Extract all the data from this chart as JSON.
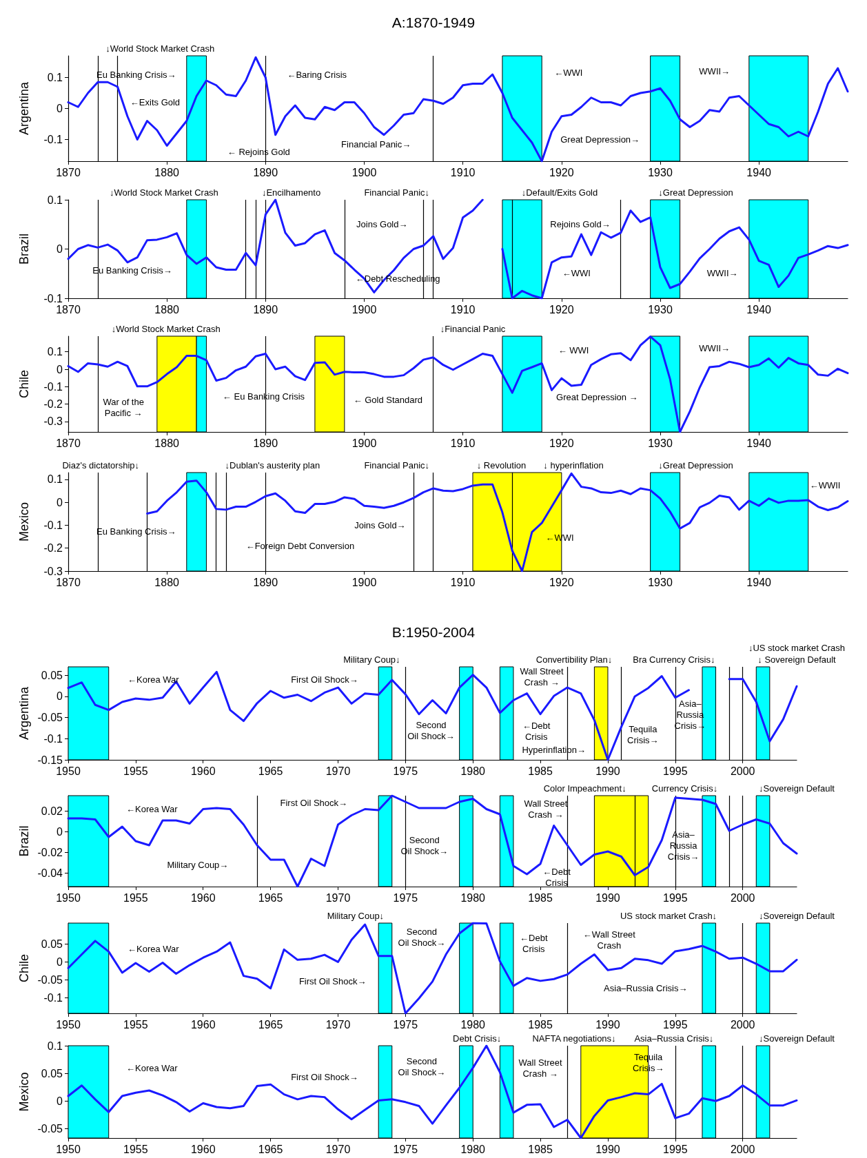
{
  "chart_data": [
    {
      "type": "line",
      "title": "A:1870-1949",
      "ylabel": "Argentina",
      "color": "#1a1aff",
      "marker": "none",
      "x": [
        1870,
        1871,
        1872,
        1873,
        1874,
        1875,
        1876,
        1877,
        1878,
        1879,
        1880,
        1881,
        1882,
        1883,
        1884,
        1885,
        1886,
        1887,
        1888,
        1889,
        1890,
        1891,
        1892,
        1893,
        1894,
        1895,
        1896,
        1897,
        1898,
        1899,
        1900,
        1901,
        1902,
        1903,
        1904,
        1905,
        1906,
        1907,
        1908,
        1909,
        1910,
        1911,
        1912,
        1913,
        1914,
        1915,
        1916,
        1917,
        1918,
        1919,
        1920,
        1921,
        1922,
        1923,
        1924,
        1925,
        1926,
        1927,
        1928,
        1929,
        1930,
        1931,
        1932,
        1933,
        1934,
        1935,
        1936,
        1937,
        1938,
        1939,
        1940,
        1941,
        1942,
        1943,
        1944,
        1945,
        1946,
        1947,
        1948,
        1949
      ],
      "values": [
        0.02,
        0.005,
        0.05,
        0.085,
        0.085,
        0.07,
        -0.025,
        -0.1,
        -0.04,
        -0.07,
        -0.12,
        -0.08,
        -0.04,
        0.04,
        0.09,
        0.075,
        0.045,
        0.04,
        0.09,
        0.165,
        0.1,
        -0.085,
        -0.025,
        0.01,
        -0.03,
        -0.035,
        0.005,
        -0.005,
        0.02,
        0.02,
        -0.015,
        -0.06,
        -0.085,
        -0.055,
        -0.02,
        -0.015,
        0.03,
        0.025,
        0.015,
        0.035,
        0.075,
        0.08,
        0.08,
        0.11,
        0.05,
        -0.03,
        -0.07,
        -0.11,
        -0.17,
        -0.075,
        -0.025,
        -0.02,
        0.005,
        0.035,
        0.02,
        0.02,
        0.01,
        0.04,
        0.05,
        0.055,
        0.065,
        0.025,
        -0.035,
        -0.06,
        -0.04,
        -0.005,
        -0.01,
        0.035,
        0.04,
        0.01,
        -0.02,
        -0.05,
        -0.06,
        -0.09,
        -0.075,
        -0.09,
        -0.01,
        0.08,
        0.13,
        0.055
      ],
      "xlim": [
        1870,
        1949
      ],
      "xticks": [
        1870,
        1880,
        1890,
        1900,
        1910,
        1920,
        1930,
        1940
      ],
      "ylim": [
        -0.17,
        0.17
      ],
      "yticks": [
        -0.1,
        0,
        0.1
      ],
      "ref_lines": [
        {
          "axis": "x",
          "value": 1873
        },
        {
          "axis": "x",
          "value": 1875
        },
        {
          "axis": "x",
          "value": 1890
        },
        {
          "axis": "x",
          "value": 1907
        }
      ],
      "bands": [
        {
          "axis": "x",
          "from": 1882,
          "to": 1884,
          "color": "#00ffff"
        },
        {
          "axis": "x",
          "from": 1914,
          "to": 1918,
          "color": "#00ffff"
        },
        {
          "axis": "x",
          "from": 1929,
          "to": 1932,
          "color": "#00ffff"
        },
        {
          "axis": "x",
          "from": 1939,
          "to": 1945,
          "color": "#00ffff"
        }
      ],
      "annotations": [
        "↓World Stock Market Crash",
        "Eu Banking Crisis→",
        "←Exits Gold",
        "← Rejoins Gold",
        "←Baring Crisis",
        "Financial Panic→",
        "←WWI",
        "Great Depression→",
        "WWII→"
      ]
    },
    {
      "type": "line",
      "ylabel": "Brazil",
      "color": "#1a1aff",
      "marker": "none",
      "x": [
        1870,
        1871,
        1872,
        1873,
        1874,
        1875,
        1876,
        1877,
        1878,
        1879,
        1880,
        1881,
        1882,
        1883,
        1884,
        1885,
        1886,
        1887,
        1888,
        1889,
        1890,
        1891,
        1892,
        1893,
        1894,
        1895,
        1896,
        1897,
        1898,
        1899,
        1900,
        1901,
        1902,
        1903,
        1904,
        1905,
        1906,
        1907,
        1908,
        1909,
        1910,
        1911,
        1912,
        1913,
        1914,
        1915,
        1916,
        1917,
        1918,
        1919,
        1920,
        1921,
        1922,
        1923,
        1924,
        1925,
        1926,
        1927,
        1928,
        1929,
        1930,
        1931,
        1932,
        1933,
        1934,
        1935,
        1936,
        1937,
        1938,
        1939,
        1940,
        1941,
        1942,
        1943,
        1944,
        1945,
        1946,
        1947,
        1948,
        1949
      ],
      "values": [
        -0.02,
        0,
        0.008,
        0.003,
        0.009,
        -0.003,
        -0.027,
        -0.017,
        0.018,
        0.019,
        0.024,
        0.032,
        -0.012,
        -0.03,
        -0.017,
        -0.037,
        -0.042,
        -0.042,
        -0.008,
        -0.033,
        0.07,
        0.1,
        0.033,
        0.007,
        0.012,
        0.03,
        0.038,
        -0.008,
        -0.023,
        -0.042,
        -0.06,
        -0.088,
        -0.063,
        -0.043,
        -0.018,
        0,
        0.007,
        0.026,
        -0.02,
        0.002,
        0.064,
        0.078,
        0.1,
        null,
        0,
        -0.1,
        -0.085,
        -0.094,
        -0.1,
        -0.027,
        -0.017,
        -0.015,
        0.03,
        -0.012,
        0.034,
        0.023,
        0.033,
        0.078,
        0.055,
        0.064,
        -0.037,
        -0.079,
        -0.071,
        -0.046,
        -0.019,
        0,
        0.021,
        0.036,
        0.044,
        0.019,
        -0.024,
        -0.032,
        -0.077,
        -0.054,
        -0.018,
        -0.011,
        -0.003,
        0.006,
        0.002,
        0.008
      ],
      "xlim": [
        1870,
        1949
      ],
      "xticks": [
        1870,
        1880,
        1890,
        1900,
        1910,
        1920,
        1930,
        1940
      ],
      "ylim": [
        -0.1,
        0.1
      ],
      "yticks": [
        -0.1,
        0,
        0.1
      ],
      "ref_lines": [
        {
          "axis": "x",
          "value": 1873
        },
        {
          "axis": "x",
          "value": 1888
        },
        {
          "axis": "x",
          "value": 1889
        },
        {
          "axis": "x",
          "value": 1890
        },
        {
          "axis": "x",
          "value": 1898
        },
        {
          "axis": "x",
          "value": 1906
        },
        {
          "axis": "x",
          "value": 1907
        },
        {
          "axis": "x",
          "value": 1915
        },
        {
          "axis": "x",
          "value": 1926
        }
      ],
      "bands": [
        {
          "axis": "x",
          "from": 1882,
          "to": 1884,
          "color": "#00ffff"
        },
        {
          "axis": "x",
          "from": 1914,
          "to": 1918,
          "color": "#00ffff"
        },
        {
          "axis": "x",
          "from": 1929,
          "to": 1932,
          "color": "#00ffff"
        },
        {
          "axis": "x",
          "from": 1939,
          "to": 1945,
          "color": "#00ffff"
        }
      ],
      "annotations": [
        "↓World Stock Market Crash",
        "↓Encilhamento",
        "Financial Panic↓",
        "↓Default/Exits Gold",
        "↓Great Depression",
        "Eu Banking Crisis→",
        "Joins Gold→",
        "←Debt Rescheduling",
        "Rejoins Gold→",
        "←WWI",
        "WWII→"
      ]
    },
    {
      "type": "line",
      "ylabel": "Chile",
      "color": "#1a1aff",
      "marker": "none",
      "x": [
        1870,
        1871,
        1872,
        1873,
        1874,
        1875,
        1876,
        1877,
        1878,
        1879,
        1880,
        1881,
        1882,
        1883,
        1884,
        1885,
        1886,
        1887,
        1888,
        1889,
        1890,
        1891,
        1892,
        1893,
        1894,
        1895,
        1896,
        1897,
        1898,
        1899,
        1900,
        1901,
        1902,
        1903,
        1904,
        1905,
        1906,
        1907,
        1908,
        1909,
        1910,
        1911,
        1912,
        1913,
        1914,
        1915,
        1916,
        1917,
        1918,
        1919,
        1920,
        1921,
        1922,
        1923,
        1924,
        1925,
        1926,
        1927,
        1928,
        1929,
        1930,
        1931,
        1932,
        1933,
        1934,
        1935,
        1936,
        1937,
        1938,
        1939,
        1940,
        1941,
        1942,
        1943,
        1944,
        1945,
        1946,
        1947,
        1948,
        1949
      ],
      "values": [
        0.018,
        -0.015,
        0.034,
        0.028,
        0.015,
        0.043,
        0.018,
        -0.098,
        -0.098,
        -0.074,
        -0.028,
        0.012,
        0.077,
        0.077,
        0.052,
        -0.065,
        -0.05,
        -0.006,
        0.015,
        0.074,
        0.089,
        0,
        0.015,
        -0.04,
        -0.062,
        0.037,
        0.04,
        -0.031,
        -0.015,
        -0.018,
        -0.018,
        -0.028,
        -0.043,
        -0.043,
        -0.034,
        0.006,
        0.055,
        0.068,
        0.025,
        -0.003,
        0.028,
        0.058,
        0.089,
        0.077,
        -0.028,
        -0.135,
        -0.009,
        0.012,
        0.034,
        -0.12,
        -0.052,
        -0.095,
        -0.089,
        0.025,
        0.058,
        0.086,
        0.092,
        0.052,
        0.138,
        0.188,
        0.138,
        -0.058,
        -0.36,
        -0.243,
        -0.105,
        0.012,
        0.018,
        0.043,
        0.031,
        0.012,
        0.025,
        0.062,
        0.009,
        0.065,
        0.034,
        0.025,
        -0.031,
        -0.037,
        0.003,
        -0.022
      ],
      "xlim": [
        1870,
        1949
      ],
      "xticks": [
        1870,
        1880,
        1890,
        1900,
        1910,
        1920,
        1930,
        1940
      ],
      "ylim": [
        -0.36,
        0.19
      ],
      "yticks": [
        -0.3,
        -0.2,
        -0.1,
        0,
        0.1
      ],
      "ref_lines": [
        {
          "axis": "x",
          "value": 1873
        },
        {
          "axis": "x",
          "value": 1890
        },
        {
          "axis": "x",
          "value": 1907
        }
      ],
      "bands": [
        {
          "axis": "x",
          "from": 1879,
          "to": 1883,
          "color": "#ffff00"
        },
        {
          "axis": "x",
          "from": 1883,
          "to": 1884,
          "color": "#00ffff"
        },
        {
          "axis": "x",
          "from": 1895,
          "to": 1898,
          "color": "#ffff00"
        },
        {
          "axis": "x",
          "from": 1914,
          "to": 1918,
          "color": "#00ffff"
        },
        {
          "axis": "x",
          "from": 1929,
          "to": 1932,
          "color": "#00ffff"
        },
        {
          "axis": "x",
          "from": 1939,
          "to": 1945,
          "color": "#00ffff"
        }
      ],
      "annotations": [
        "↓World Stock Market Crash",
        "↓Financial Panic",
        "War of the\nPacific →",
        "← Eu Banking Crisis",
        "← Gold Standard",
        "← WWI",
        "Great Depression →",
        "WWII→"
      ]
    },
    {
      "type": "line",
      "ylabel": "Mexico",
      "color": "#1a1aff",
      "marker": "none",
      "x": [
        1878,
        1879,
        1880,
        1881,
        1882,
        1883,
        1884,
        1885,
        1886,
        1887,
        1888,
        1889,
        1890,
        1891,
        1892,
        1893,
        1894,
        1895,
        1896,
        1897,
        1898,
        1899,
        1900,
        1901,
        1902,
        1903,
        1904,
        1905,
        1906,
        1907,
        1908,
        1909,
        1910,
        1911,
        1912,
        1913,
        1914,
        1915,
        1916,
        1917,
        1918,
        1919,
        1920,
        1921,
        1922,
        1923,
        1924,
        1925,
        1926,
        1927,
        1928,
        1929,
        1930,
        1931,
        1932,
        1933,
        1934,
        1935,
        1936,
        1937,
        1938,
        1939,
        1940,
        1941,
        1942,
        1943,
        1944,
        1945,
        1946,
        1947,
        1948,
        1949
      ],
      "values": [
        -0.049,
        -0.039,
        0.007,
        0.044,
        0.09,
        0.095,
        0.044,
        -0.029,
        -0.032,
        -0.019,
        -0.019,
        0.002,
        0.027,
        0.039,
        0.007,
        -0.039,
        -0.046,
        -0.007,
        -0.007,
        0.002,
        0.022,
        0.015,
        -0.015,
        -0.019,
        -0.024,
        -0.015,
        0,
        0.019,
        0.044,
        0.061,
        0.051,
        0.049,
        0.058,
        0.073,
        0.078,
        0.078,
        -0.044,
        -0.211,
        -0.3,
        -0.13,
        -0.09,
        -0.019,
        0.053,
        0.126,
        0.068,
        0.061,
        0.044,
        0.041,
        0.051,
        0.036,
        0.061,
        0.053,
        0.017,
        -0.041,
        -0.114,
        -0.09,
        -0.022,
        -0.002,
        0.029,
        0.022,
        -0.032,
        0.007,
        -0.015,
        0.017,
        -0.002,
        0.007,
        0.007,
        0.01,
        -0.019,
        -0.034,
        -0.022,
        0.005
      ],
      "xlim": [
        1870,
        1949
      ],
      "xticks": [
        1870,
        1880,
        1890,
        1900,
        1910,
        1920,
        1930,
        1940
      ],
      "ylim": [
        -0.3,
        0.13
      ],
      "yticks": [
        -0.3,
        -0.2,
        -0.1,
        0,
        0.1
      ],
      "ref_lines": [
        {
          "axis": "x",
          "value": 1873
        },
        {
          "axis": "x",
          "value": 1878
        },
        {
          "axis": "x",
          "value": 1885
        },
        {
          "axis": "x",
          "value": 1886
        },
        {
          "axis": "x",
          "value": 1890
        },
        {
          "axis": "x",
          "value": 1905
        },
        {
          "axis": "x",
          "value": 1907
        },
        {
          "axis": "x",
          "value": 1915
        }
      ],
      "bands": [
        {
          "axis": "x",
          "from": 1882,
          "to": 1884,
          "color": "#00ffff"
        },
        {
          "axis": "x",
          "from": 1911,
          "to": 1920,
          "color": "#ffff00"
        },
        {
          "axis": "x",
          "from": 1929,
          "to": 1932,
          "color": "#00ffff"
        },
        {
          "axis": "x",
          "from": 1939,
          "to": 1945,
          "color": "#00ffff"
        }
      ],
      "annotations": [
        "Diaz's dictatorship↓",
        "↓Dublan's austerity plan",
        "Financial Panic↓",
        "↓ Revolution",
        "↓ hyperinflation",
        "↓Great Depression",
        "←WWII",
        "Eu Banking Crisis→",
        "Joins Gold→",
        "←Foreign Debt Conversion",
        "←WWI"
      ]
    },
    {
      "type": "line",
      "title": "B:1950-2004",
      "ylabel": "Argentina",
      "color": "#1a1aff",
      "marker": "none",
      "x": [
        1950,
        1951,
        1952,
        1953,
        1954,
        1955,
        1956,
        1957,
        1958,
        1959,
        1960,
        1961,
        1962,
        1963,
        1964,
        1965,
        1966,
        1967,
        1968,
        1969,
        1970,
        1971,
        1972,
        1973,
        1974,
        1975,
        1976,
        1977,
        1978,
        1979,
        1980,
        1981,
        1982,
        1983,
        1984,
        1985,
        1986,
        1987,
        1988,
        1989,
        1990,
        1991,
        1992,
        1993,
        1994,
        1995,
        1996,
        1997,
        1998,
        1999,
        2000,
        2001,
        2002,
        2003,
        2004
      ],
      "values": [
        0.02,
        0.033,
        -0.02,
        -0.032,
        -0.013,
        -0.005,
        -0.008,
        -0.003,
        0.035,
        -0.017,
        0.021,
        0.058,
        -0.032,
        -0.058,
        -0.016,
        0.013,
        -0.003,
        0.004,
        -0.011,
        0.009,
        0.021,
        -0.017,
        0.007,
        0.004,
        0.039,
        0.005,
        -0.042,
        -0.009,
        -0.04,
        0.021,
        0.051,
        0.021,
        -0.039,
        -0.009,
        0.007,
        -0.042,
        0.001,
        0.021,
        0.007,
        -0.056,
        -0.15,
        -0.072,
        0,
        0.02,
        0.048,
        -0.003,
        0.015,
        null,
        null,
        0.041,
        0.041,
        -0.013,
        -0.106,
        -0.054,
        0.024
      ],
      "xlim": [
        1950,
        2004
      ],
      "xticks": [
        1950,
        1955,
        1960,
        1965,
        1970,
        1975,
        1980,
        1985,
        1990,
        1995,
        2000
      ],
      "ylim": [
        -0.15,
        0.07
      ],
      "yticks": [
        -0.15,
        -0.1,
        -0.05,
        0,
        0.05
      ],
      "ref_lines": [
        {
          "axis": "x",
          "value": 1975
        },
        {
          "axis": "x",
          "value": 1987
        },
        {
          "axis": "x",
          "value": 1991
        },
        {
          "axis": "x",
          "value": 1995
        },
        {
          "axis": "x",
          "value": 1999
        },
        {
          "axis": "x",
          "value": 2000
        }
      ],
      "bands": [
        {
          "axis": "x",
          "from": 1950,
          "to": 1953,
          "color": "#00ffff"
        },
        {
          "axis": "x",
          "from": 1973,
          "to": 1974,
          "color": "#00ffff"
        },
        {
          "axis": "x",
          "from": 1979,
          "to": 1980,
          "color": "#00ffff"
        },
        {
          "axis": "x",
          "from": 1982,
          "to": 1983,
          "color": "#00ffff"
        },
        {
          "axis": "x",
          "from": 1989,
          "to": 1990,
          "color": "#ffff00"
        },
        {
          "axis": "x",
          "from": 1997,
          "to": 1998,
          "color": "#00ffff"
        },
        {
          "axis": "x",
          "from": 2001,
          "to": 2002,
          "color": "#00ffff"
        }
      ],
      "annotations": [
        "Military Coup↓",
        "Convertibility Plan↓",
        "Bra Currency Crisis↓",
        "↓ Sovereign Default",
        "↓US stock market Crash",
        "←Korea War",
        "First Oil Shock→",
        "Wall Street\nCrash →",
        "Second\nOil Shock→",
        "←Debt\nCrisis",
        "Hyperinflation→",
        "Tequila\nCrisis→",
        "Asia–\nRussia\nCrisis→"
      ]
    },
    {
      "type": "line",
      "ylabel": "Brazil",
      "color": "#1a1aff",
      "marker": "none",
      "x": [
        1950,
        1951,
        1952,
        1953,
        1954,
        1955,
        1956,
        1957,
        1958,
        1959,
        1960,
        1961,
        1962,
        1963,
        1964,
        1965,
        1966,
        1967,
        1968,
        1969,
        1970,
        1971,
        1972,
        1973,
        1974,
        1975,
        1976,
        1977,
        1978,
        1979,
        1980,
        1981,
        1982,
        1983,
        1984,
        1985,
        1986,
        1987,
        1988,
        1989,
        1990,
        1991,
        1992,
        1993,
        1994,
        1995,
        1996,
        1997,
        1998,
        1999,
        2000,
        2001,
        2002,
        2003,
        2004
      ],
      "values": [
        0.013,
        0.013,
        0.012,
        -0.005,
        0.005,
        -0.009,
        -0.013,
        0.011,
        0.011,
        0.008,
        0.022,
        0.023,
        0.022,
        0.007,
        -0.013,
        -0.027,
        -0.027,
        -0.053,
        -0.026,
        -0.033,
        0.007,
        0.016,
        0.022,
        0.021,
        0.035,
        0.029,
        0.023,
        0.023,
        0.023,
        0.029,
        0.032,
        0.022,
        0.017,
        -0.033,
        -0.041,
        -0.031,
        0.006,
        -0.013,
        -0.032,
        -0.022,
        -0.019,
        -0.024,
        -0.042,
        -0.034,
        -0.008,
        0.033,
        0.032,
        0.031,
        0.027,
        0.001,
        0.007,
        0.012,
        0.008,
        -0.011,
        -0.021
      ],
      "xlim": [
        1950,
        2004
      ],
      "xticks": [
        1950,
        1955,
        1960,
        1965,
        1970,
        1975,
        1980,
        1985,
        1990,
        1995,
        2000
      ],
      "ylim": [
        -0.053,
        0.035
      ],
      "yticks": [
        -0.04,
        -0.02,
        0,
        0.02
      ],
      "ref_lines": [
        {
          "axis": "x",
          "value": 1964
        },
        {
          "axis": "x",
          "value": 1975
        },
        {
          "axis": "x",
          "value": 1987
        },
        {
          "axis": "x",
          "value": 1992
        },
        {
          "axis": "x",
          "value": 1995
        },
        {
          "axis": "x",
          "value": 1999
        },
        {
          "axis": "x",
          "value": 2000
        }
      ],
      "bands": [
        {
          "axis": "x",
          "from": 1950,
          "to": 1953,
          "color": "#00ffff"
        },
        {
          "axis": "x",
          "from": 1973,
          "to": 1974,
          "color": "#00ffff"
        },
        {
          "axis": "x",
          "from": 1979,
          "to": 1980,
          "color": "#00ffff"
        },
        {
          "axis": "x",
          "from": 1982,
          "to": 1983,
          "color": "#00ffff"
        },
        {
          "axis": "x",
          "from": 1989,
          "to": 1993,
          "color": "#ffff00"
        },
        {
          "axis": "x",
          "from": 1997,
          "to": 1998,
          "color": "#00ffff"
        },
        {
          "axis": "x",
          "from": 2001,
          "to": 2002,
          "color": "#00ffff"
        }
      ],
      "annotations": [
        "Color Impeachment↓",
        "Currency Crisis↓",
        "↓Sovereign Default",
        "←Korea War",
        "First Oil Shock→",
        "Military Coup→",
        "Second\nOil Shock→",
        "Wall Street\nCrash →",
        "←Debt\nCrisis",
        "Asia–\nRussia\nCrisis→"
      ]
    },
    {
      "type": "line",
      "ylabel": "Chile",
      "color": "#1a1aff",
      "marker": "none",
      "x": [
        1950,
        1951,
        1952,
        1953,
        1954,
        1955,
        1956,
        1957,
        1958,
        1959,
        1960,
        1961,
        1962,
        1963,
        1964,
        1965,
        1966,
        1967,
        1968,
        1969,
        1970,
        1971,
        1972,
        1973,
        1974,
        1975,
        1976,
        1977,
        1978,
        1979,
        1980,
        1981,
        1982,
        1983,
        1984,
        1985,
        1986,
        1987,
        1988,
        1989,
        1990,
        1991,
        1992,
        1993,
        1994,
        1995,
        1996,
        1997,
        1998,
        1999,
        2000,
        2001,
        2002,
        2003,
        2004
      ],
      "values": [
        -0.017,
        0.021,
        0.059,
        0.029,
        -0.03,
        -0.003,
        -0.027,
        -0.002,
        -0.033,
        -0.009,
        0.012,
        0.029,
        0.055,
        -0.039,
        -0.047,
        -0.074,
        0.035,
        0.006,
        0.009,
        0.02,
        0,
        0.062,
        0.105,
        0.017,
        0.017,
        -0.144,
        -0.102,
        -0.055,
        0.021,
        0.08,
        0.109,
        0.108,
        0.002,
        -0.067,
        -0.045,
        -0.053,
        -0.048,
        -0.035,
        -0.005,
        0.021,
        -0.023,
        -0.017,
        0.009,
        0.005,
        -0.005,
        0.03,
        0.036,
        0.045,
        0.029,
        0.009,
        0.012,
        -0.005,
        -0.026,
        -0.026,
        0.006
      ],
      "xlim": [
        1950,
        2004
      ],
      "xticks": [
        1950,
        1955,
        1960,
        1965,
        1970,
        1975,
        1980,
        1985,
        1990,
        1995,
        2000
      ],
      "ylim": [
        -0.144,
        0.109
      ],
      "yticks": [
        -0.1,
        -0.05,
        0,
        0.05
      ],
      "ref_lines": [
        {
          "axis": "x",
          "value": 1987
        },
        {
          "axis": "x",
          "value": 2000
        }
      ],
      "bands": [
        {
          "axis": "x",
          "from": 1950,
          "to": 1953,
          "color": "#00ffff"
        },
        {
          "axis": "x",
          "from": 1973,
          "to": 1974,
          "color": "#00ffff"
        },
        {
          "axis": "x",
          "from": 1979,
          "to": 1980,
          "color": "#00ffff"
        },
        {
          "axis": "x",
          "from": 1982,
          "to": 1983,
          "color": "#00ffff"
        },
        {
          "axis": "x",
          "from": 1997,
          "to": 1998,
          "color": "#00ffff"
        },
        {
          "axis": "x",
          "from": 2001,
          "to": 2002,
          "color": "#00ffff"
        }
      ],
      "annotations": [
        "Military Coup↓",
        "US stock market Crash↓",
        "↓Sovereign Default",
        "←Korea War",
        "Second\nOil Shock→",
        "←Debt\nCrisis",
        "←Wall Street\nCrash",
        "First Oil Shock→",
        "Asia–Russia Crisis→"
      ]
    },
    {
      "type": "line",
      "ylabel": "Mexico",
      "color": "#1a1aff",
      "marker": "none",
      "x": [
        1950,
        1951,
        1952,
        1953,
        1954,
        1955,
        1956,
        1957,
        1958,
        1959,
        1960,
        1961,
        1962,
        1963,
        1964,
        1965,
        1966,
        1967,
        1968,
        1969,
        1970,
        1971,
        1972,
        1973,
        1974,
        1975,
        1976,
        1977,
        1978,
        1979,
        1980,
        1981,
        1982,
        1983,
        1984,
        1985,
        1986,
        1987,
        1988,
        1989,
        1990,
        1991,
        1992,
        1993,
        1994,
        1995,
        1996,
        1997,
        1998,
        1999,
        2000,
        2001,
        2002,
        2003,
        2004
      ],
      "values": [
        0.009,
        0.028,
        0.003,
        -0.02,
        0.009,
        0.015,
        0.019,
        0.01,
        -0.002,
        -0.019,
        -0.004,
        -0.011,
        -0.013,
        -0.009,
        0.027,
        0.03,
        0.012,
        0.003,
        0.009,
        0.007,
        -0.015,
        -0.033,
        -0.016,
        0.001,
        0.003,
        -0.002,
        -0.009,
        -0.041,
        -0.008,
        0.024,
        0.06,
        0.1,
        0.052,
        -0.021,
        -0.007,
        -0.006,
        -0.047,
        -0.034,
        -0.067,
        -0.027,
        0.001,
        0.007,
        0.014,
        0.012,
        0.031,
        -0.031,
        -0.023,
        0.005,
        0,
        0.009,
        0.028,
        0.012,
        -0.008,
        -0.008,
        0.001
      ],
      "xlim": [
        1950,
        2004
      ],
      "xticks": [
        1950,
        1955,
        1960,
        1965,
        1970,
        1975,
        1980,
        1985,
        1990,
        1995,
        2000
      ],
      "ylim": [
        -0.067,
        0.1
      ],
      "yticks": [
        -0.05,
        0,
        0.05,
        0.1
      ],
      "ref_lines": [
        {
          "axis": "x",
          "value": 1987
        },
        {
          "axis": "x",
          "value": 1995
        },
        {
          "axis": "x",
          "value": 2000
        }
      ],
      "bands": [
        {
          "axis": "x",
          "from": 1950,
          "to": 1953,
          "color": "#00ffff"
        },
        {
          "axis": "x",
          "from": 1973,
          "to": 1974,
          "color": "#00ffff"
        },
        {
          "axis": "x",
          "from": 1979,
          "to": 1980,
          "color": "#00ffff"
        },
        {
          "axis": "x",
          "from": 1982,
          "to": 1983,
          "color": "#00ffff"
        },
        {
          "axis": "x",
          "from": 1988,
          "to": 1993,
          "color": "#ffff00"
        },
        {
          "axis": "x",
          "from": 1997,
          "to": 1998,
          "color": "#00ffff"
        },
        {
          "axis": "x",
          "from": 2001,
          "to": 2002,
          "color": "#00ffff"
        }
      ],
      "annotations": [
        "Debt Crisis↓",
        "NAFTA negotiations↓",
        "Asia–Russia Crisis↓",
        "↓Sovereign Default",
        "←Korea War",
        "First Oil Shock→",
        "Second\nOil Shock→",
        "Wall Street\nCrash →",
        "Tequila\nCrisis→"
      ]
    }
  ]
}
